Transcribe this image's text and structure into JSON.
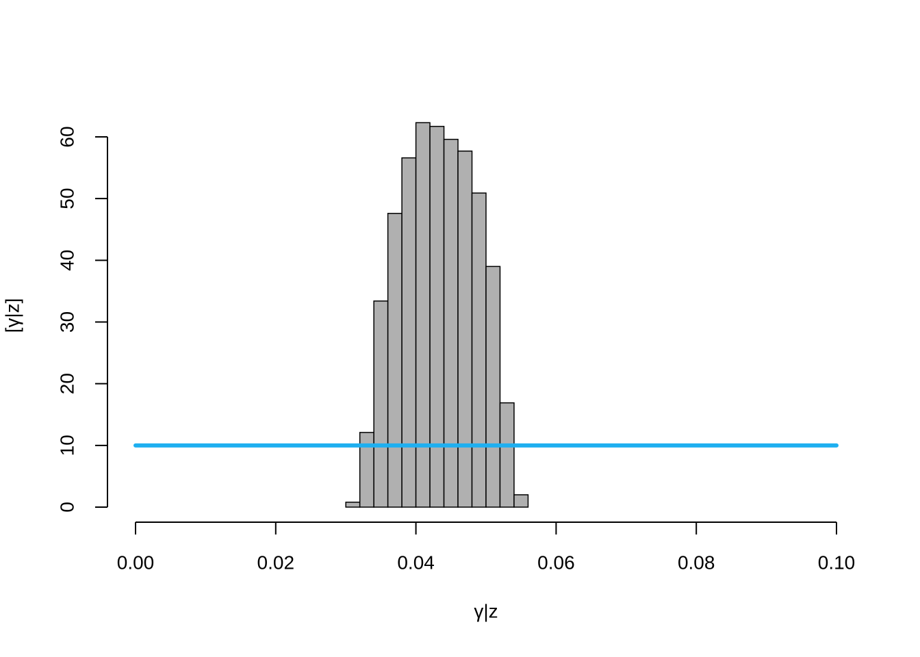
{
  "chart_data": {
    "type": "histogram",
    "xlabel": "γ|z",
    "ylabel": "[γ|z]",
    "bins": [
      0.03,
      0.032,
      0.034,
      0.036,
      0.038,
      0.04,
      0.042,
      0.044,
      0.046,
      0.048,
      0.05,
      0.052,
      0.054,
      0.056
    ],
    "values": [
      0.8,
      12.1,
      33.4,
      47.6,
      56.6,
      62.3,
      61.7,
      59.6,
      57.7,
      50.9,
      39.0,
      16.9,
      2.0
    ],
    "color": "#b0b0b0",
    "lines": [
      {
        "x": [
          0,
          0.1
        ],
        "values": [
          10,
          10
        ],
        "color": "#1eaff0"
      }
    ],
    "xlim": [
      0,
      0.1
    ],
    "ylim": [
      0,
      60
    ],
    "xticks": [
      {
        "value": 0,
        "label": "0.00"
      },
      {
        "value": 0.02,
        "label": "0.02"
      },
      {
        "value": 0.04,
        "label": "0.04"
      },
      {
        "value": 0.06,
        "label": "0.06"
      },
      {
        "value": 0.08,
        "label": "0.08"
      },
      {
        "value": 0.1,
        "label": "0.10"
      }
    ],
    "yticks": [
      0,
      10,
      20,
      30,
      40,
      50,
      60
    ]
  }
}
